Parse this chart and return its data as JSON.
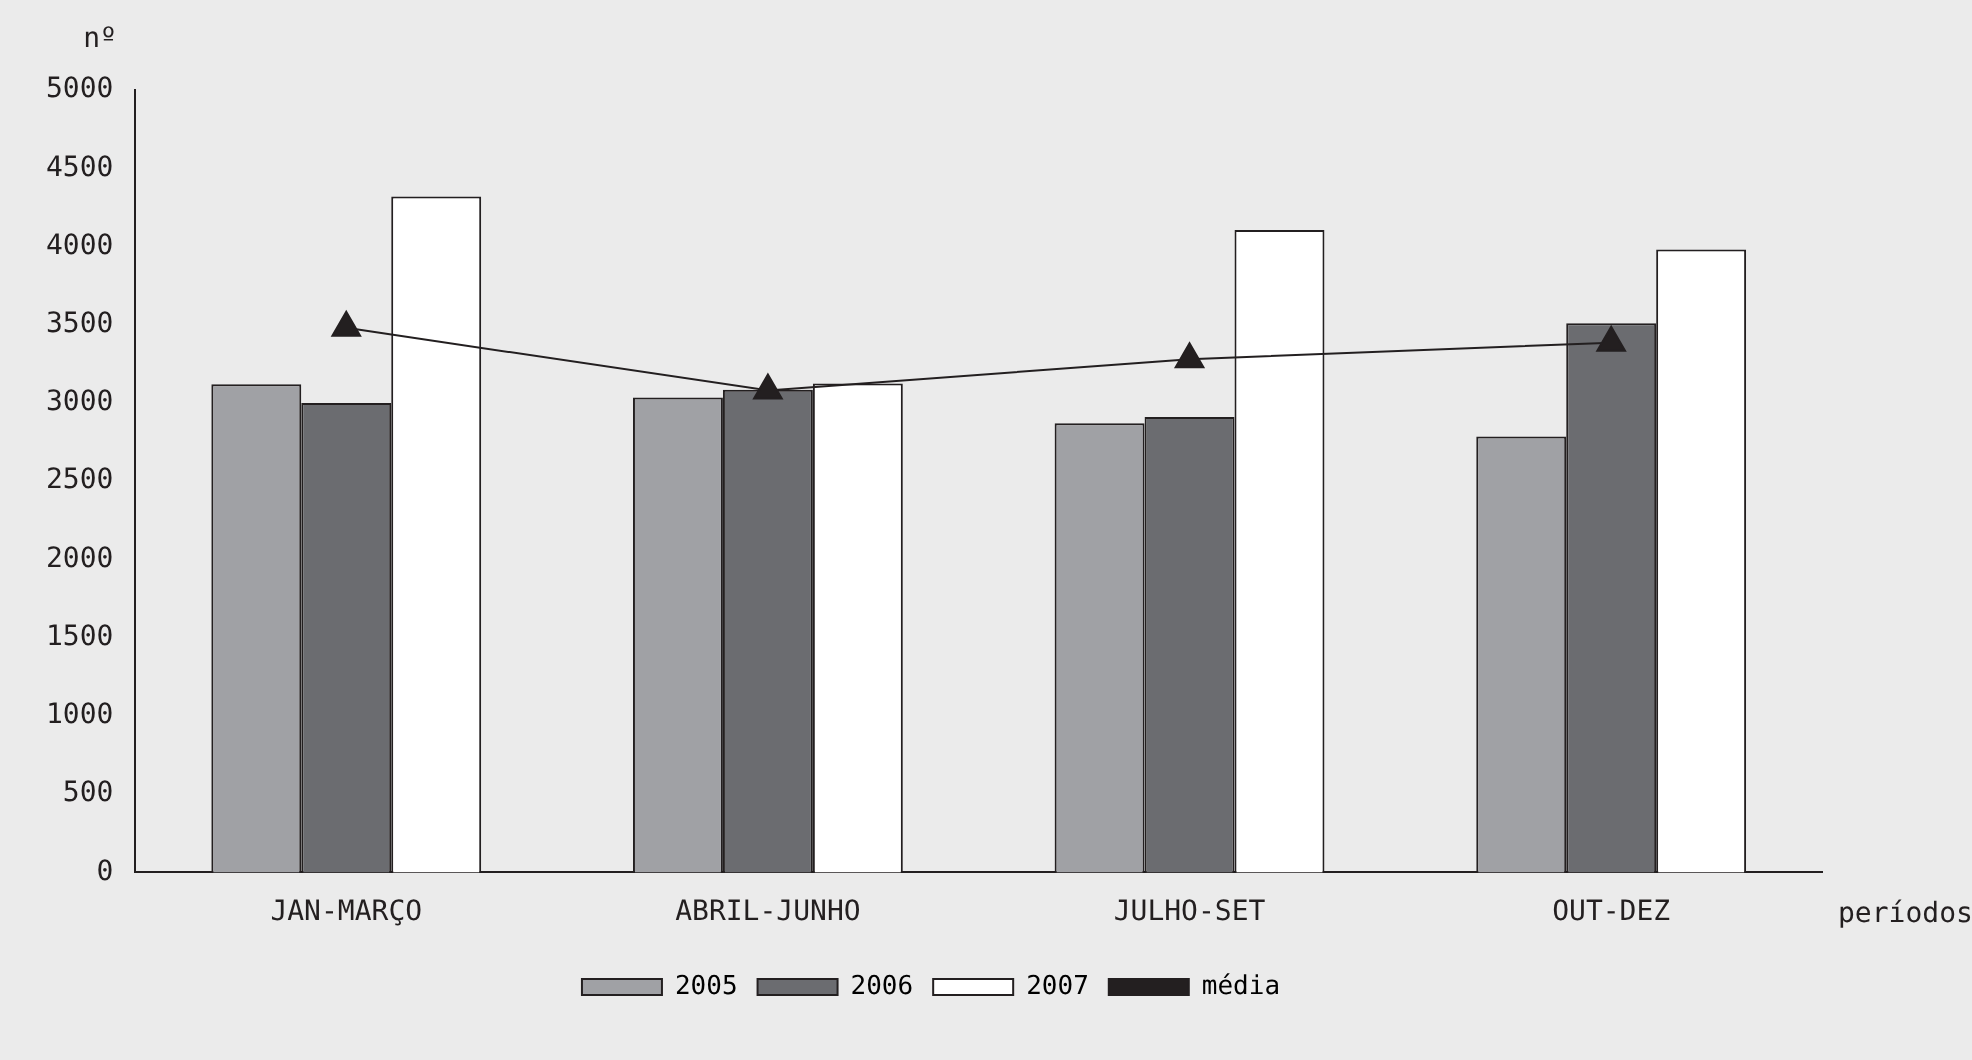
{
  "chart_data": {
    "type": "bar",
    "xlabel": "períodos",
    "ylabel": "nº",
    "categories": [
      "JAN-MARÇO",
      "ABRIL-JUNHO",
      "JULHO-SET",
      "OUT-DEZ"
    ],
    "series": [
      {
        "name": "2005",
        "color": "#a0a1a5",
        "values": [
          3120,
          3035,
          2870,
          2785
        ]
      },
      {
        "name": "2006",
        "color": "#6b6c70",
        "values": [
          3000,
          3085,
          2910,
          3510
        ]
      },
      {
        "name": "2007",
        "color": "#ffffff",
        "values": [
          4320,
          3125,
          4105,
          3980
        ]
      },
      {
        "name": "média",
        "type": "line",
        "color": "#231f20",
        "marker": "triangle",
        "values": [
          3480,
          3080,
          3280,
          3385
        ]
      }
    ],
    "ylim": [
      0,
      5000
    ],
    "yticks": [
      0,
      500,
      1000,
      1500,
      2000,
      2500,
      3000,
      3500,
      4000,
      4500,
      5000
    ],
    "grid": false,
    "legend": "bottom"
  }
}
